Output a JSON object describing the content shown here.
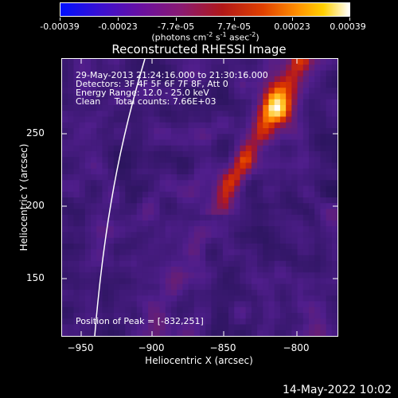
{
  "colorbar": {
    "tick_labels": [
      "-0.00039",
      "-0.00023",
      "-7.7e-05",
      "7.7e-05",
      "0.00023",
      "0.00039"
    ],
    "units_prefix": "(photons cm",
    "units_exp1": "-2",
    "units_mid": " s",
    "units_exp2": "-1",
    "units_mid2": " asec",
    "units_exp3": "-2",
    "units_suffix": ")"
  },
  "chart_data": {
    "type": "heatmap",
    "title": "Reconstructed RHESSI Image",
    "xlabel": "Heliocentric X (arcsec)",
    "ylabel": "Heliocentric Y (arcsec)",
    "xlim": [
      -966,
      -775
    ],
    "ylim": [
      105,
      295
    ],
    "x_ticks": [
      -950,
      -900,
      -850,
      -800
    ],
    "x_tick_labels": [
      "−950",
      "−900",
      "−850",
      "−800"
    ],
    "y_ticks": [
      150,
      200,
      250
    ],
    "y_tick_labels": [
      "150",
      "200",
      "250"
    ],
    "colorbar_range": [
      -0.00039,
      0.00039
    ],
    "peak_position": [
      -832,
      251
    ],
    "limb_curve": "solar limb drawn as white line near left side"
  },
  "annotations": {
    "line1": "29-May-2013 21:24:16.000 to 21:30:16.000",
    "line2": "Detectors: 3F 4F 5F 6F 7F 8F, Att 0",
    "line3": "Energy Range: 12.0 - 25.0 keV",
    "line4_a": "Clean",
    "line4_b": "Total counts: 7.66E+03",
    "peak": "Position of Peak = [-832,251]"
  },
  "footer": {
    "timestamp": "14-May-2022 10:02"
  }
}
